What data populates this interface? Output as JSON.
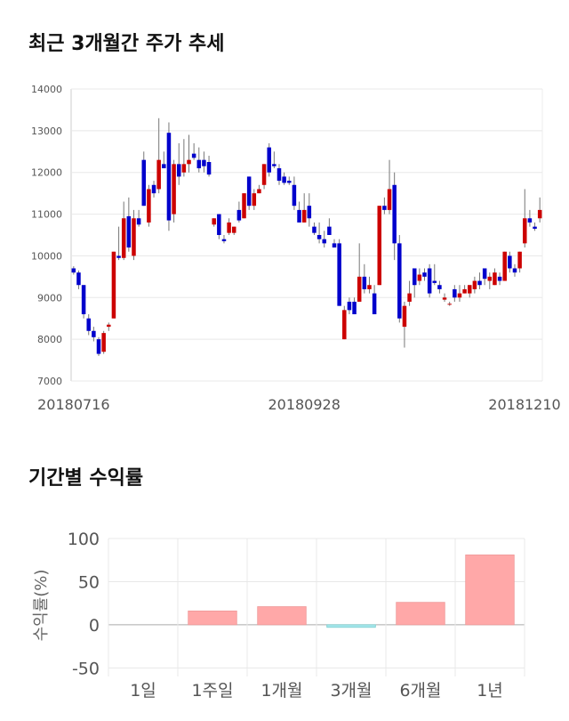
{
  "chart_data": [
    {
      "type": "candlestick",
      "title": "최근 3개월간 주가 추세",
      "categories": [
        "20180716",
        null,
        null,
        null,
        null,
        null,
        null,
        null,
        null,
        null,
        null,
        null,
        null,
        null,
        null,
        null,
        null,
        null,
        null,
        null,
        null,
        null,
        null,
        null,
        null,
        null,
        null,
        null,
        null,
        null,
        null,
        null,
        null,
        null,
        null,
        null,
        null,
        null,
        null,
        null,
        null,
        null,
        null,
        null,
        null,
        null,
        "20180928",
        null,
        null,
        null,
        null,
        null,
        null,
        null,
        null,
        null,
        null,
        null,
        null,
        null,
        null,
        null,
        null,
        null,
        null,
        null,
        null,
        null,
        null,
        null,
        null,
        null,
        null,
        null,
        null,
        null,
        null,
        null,
        null,
        null,
        null,
        null,
        null,
        null,
        null,
        null,
        null,
        null,
        null,
        null,
        null,
        null,
        null,
        "20181210"
      ],
      "ohlc": [
        [
          9700,
          9750,
          9550,
          9600
        ],
        [
          9600,
          9650,
          9200,
          9300
        ],
        [
          9300,
          9300,
          8500,
          8600
        ],
        [
          8500,
          8600,
          8100,
          8200
        ],
        [
          8200,
          8300,
          7950,
          8050
        ],
        [
          8000,
          8050,
          7600,
          7650
        ],
        [
          7700,
          8200,
          7650,
          8150
        ],
        [
          8300,
          8400,
          8200,
          8350
        ],
        [
          8500,
          10100,
          8500,
          10100
        ],
        [
          10000,
          10700,
          9900,
          9950
        ],
        [
          9950,
          11300,
          9900,
          10900
        ],
        [
          10950,
          11400,
          10100,
          10200
        ],
        [
          10000,
          11100,
          9900,
          10900
        ],
        [
          10900,
          11100,
          10700,
          10750
        ],
        [
          12300,
          12500,
          11200,
          11200
        ],
        [
          10800,
          11700,
          10700,
          11600
        ],
        [
          11700,
          11800,
          11400,
          11500
        ],
        [
          11600,
          13300,
          11500,
          12300
        ],
        [
          12200,
          12500,
          12100,
          12100
        ],
        [
          12950,
          13200,
          10600,
          10850
        ],
        [
          11000,
          12300,
          10800,
          12200
        ],
        [
          12200,
          12700,
          11700,
          11900
        ],
        [
          12000,
          12800,
          11900,
          12200
        ],
        [
          12200,
          12900,
          12000,
          12300
        ],
        [
          12450,
          12700,
          12300,
          12350
        ],
        [
          12300,
          12600,
          12000,
          12100
        ],
        [
          12300,
          12500,
          12000,
          12150
        ],
        [
          12250,
          12400,
          11900,
          11950
        ],
        [
          10750,
          10900,
          10700,
          10900
        ],
        [
          11000,
          11000,
          10400,
          10500
        ],
        [
          10400,
          10500,
          10300,
          10350
        ],
        [
          10550,
          10900,
          10500,
          10800
        ],
        [
          10550,
          10700,
          10500,
          10700
        ],
        [
          11100,
          11300,
          10800,
          10850
        ],
        [
          10900,
          11500,
          10900,
          11500
        ],
        [
          11900,
          11900,
          11100,
          11200
        ],
        [
          11200,
          11600,
          11100,
          11500
        ],
        [
          11500,
          11700,
          11500,
          11600
        ],
        [
          11700,
          12200,
          11600,
          12200
        ],
        [
          12600,
          12700,
          11900,
          12000
        ],
        [
          12200,
          12500,
          12100,
          12150
        ],
        [
          12100,
          12200,
          11700,
          11800
        ],
        [
          11900,
          12000,
          11700,
          11750
        ],
        [
          11800,
          11900,
          11700,
          11750
        ],
        [
          11700,
          11900,
          11100,
          11200
        ],
        [
          11100,
          11300,
          10800,
          10800
        ],
        [
          10800,
          11500,
          10800,
          11100
        ],
        [
          11200,
          11500,
          10700,
          10900
        ],
        [
          10700,
          10800,
          10500,
          10550
        ],
        [
          10500,
          10800,
          10300,
          10400
        ],
        [
          10400,
          10600,
          10200,
          10300
        ],
        [
          10700,
          10900,
          10500,
          10500
        ],
        [
          10300,
          10400,
          10200,
          10200
        ],
        [
          10300,
          10400,
          8800,
          8800
        ],
        [
          8000,
          8800,
          8000,
          8700
        ],
        [
          8900,
          9000,
          8600,
          8700
        ],
        [
          8900,
          9000,
          8600,
          8600
        ],
        [
          8900,
          10300,
          8900,
          9500
        ],
        [
          9500,
          9800,
          9100,
          9200
        ],
        [
          9200,
          9500,
          9100,
          9300
        ],
        [
          9100,
          9300,
          8600,
          8600
        ],
        [
          9300,
          11200,
          9300,
          11200
        ],
        [
          11200,
          11400,
          11000,
          11100
        ],
        [
          11100,
          12300,
          11000,
          11600
        ],
        [
          11700,
          12000,
          9900,
          10300
        ],
        [
          10300,
          10500,
          8400,
          8500
        ],
        [
          8300,
          8900,
          7800,
          8800
        ],
        [
          8900,
          9400,
          8800,
          9100
        ],
        [
          9700,
          9700,
          9000,
          9300
        ],
        [
          9400,
          9700,
          9300,
          9550
        ],
        [
          9600,
          9700,
          9400,
          9500
        ],
        [
          9700,
          9800,
          9000,
          9100
        ],
        [
          9400,
          9800,
          9300,
          9350
        ],
        [
          9300,
          9400,
          9100,
          9200
        ],
        [
          8950,
          9100,
          8900,
          9000
        ],
        [
          8850,
          8900,
          8800,
          8850
        ],
        [
          9200,
          9300,
          8900,
          9000
        ],
        [
          9000,
          9300,
          8900,
          9100
        ],
        [
          9100,
          9300,
          9100,
          9200
        ],
        [
          9100,
          9300,
          9000,
          9300
        ],
        [
          9200,
          9500,
          9100,
          9400
        ],
        [
          9400,
          9600,
          9200,
          9300
        ],
        [
          9700,
          9700,
          9300,
          9450
        ],
        [
          9400,
          9600,
          9200,
          9500
        ],
        [
          9300,
          9700,
          9300,
          9600
        ],
        [
          9500,
          9600,
          9300,
          9400
        ],
        [
          9400,
          10100,
          9400,
          10100
        ],
        [
          10000,
          10100,
          9600,
          9700
        ],
        [
          9700,
          9800,
          9500,
          9600
        ],
        [
          9700,
          10100,
          9600,
          10100
        ],
        [
          10300,
          11600,
          10200,
          10900
        ],
        [
          10900,
          11100,
          10700,
          10800
        ],
        [
          10700,
          10800,
          10600,
          10650
        ],
        [
          10900,
          11400,
          10800,
          11100
        ]
      ],
      "up_color": "#cc0000",
      "down_color": "#0000cc",
      "ylim": [
        7000,
        14000
      ],
      "yticks": [
        7000,
        8000,
        9000,
        10000,
        11000,
        12000,
        13000,
        14000
      ],
      "grid": true
    },
    {
      "type": "bar",
      "title": "기간별 수익률",
      "y_label": "수익률(%)",
      "categories": [
        "1일",
        "1주일",
        "1개월",
        "3개월",
        "6개월",
        "1년"
      ],
      "values": [
        0,
        16,
        21,
        -3,
        26,
        81
      ],
      "pos_color": "#ffa8a8",
      "neg_color": "#a8e8ee",
      "ylim": [
        -60,
        100
      ],
      "yticks": [
        -50,
        0,
        50,
        100
      ],
      "grid": true
    }
  ]
}
